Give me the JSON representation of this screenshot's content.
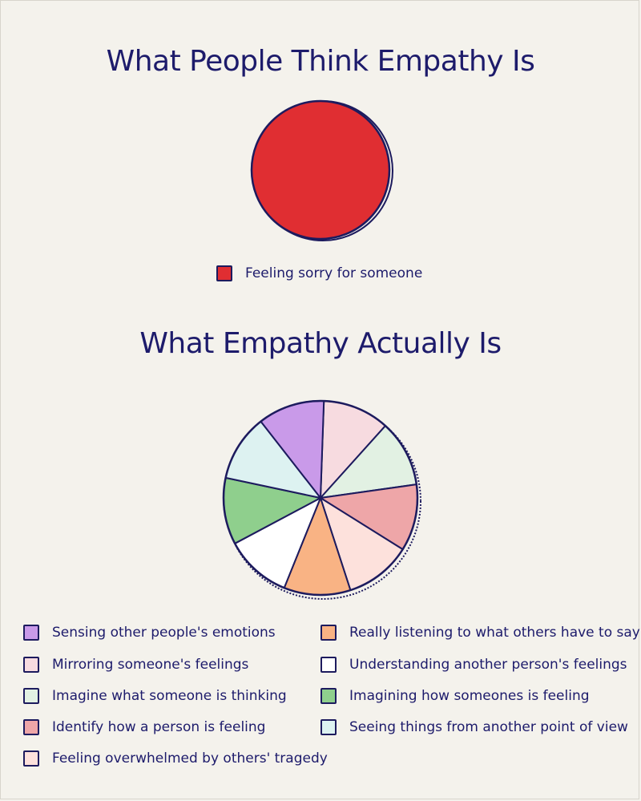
{
  "chart_data": [
    {
      "type": "pie",
      "title": "What People Think Empathy Is",
      "slices": [
        {
          "label": "Feeling sorry for someone",
          "value": 100,
          "color": "#e02e32"
        }
      ]
    },
    {
      "type": "pie",
      "title": "What Empathy Actually Is",
      "slices": [
        {
          "label": "Sensing other people's emotions",
          "value": 11.1,
          "color": "#c99ae9"
        },
        {
          "label": "Mirroring someone's feelings",
          "value": 11.1,
          "color": "#f7dbe0"
        },
        {
          "label": "Imagine what someone is thinking",
          "value": 11.1,
          "color": "#e2f1e3"
        },
        {
          "label": "Identify how a person is feeling",
          "value": 11.1,
          "color": "#eea6a8"
        },
        {
          "label": "Feeling overwhelmed  by others' tragedy",
          "value": 11.1,
          "color": "#fde1dc"
        },
        {
          "label": "Really listening to what others have to say",
          "value": 11.1,
          "color": "#f9b384"
        },
        {
          "label": "Understanding another person's feelings",
          "value": 11.1,
          "color": "#ffffff"
        },
        {
          "label": "Imagining how someones is feeling",
          "value": 11.1,
          "color": "#8fcf8d"
        },
        {
          "label": "Seeing things from another point of view",
          "value": 11.1,
          "color": "#ddf2f1"
        }
      ]
    }
  ]
}
